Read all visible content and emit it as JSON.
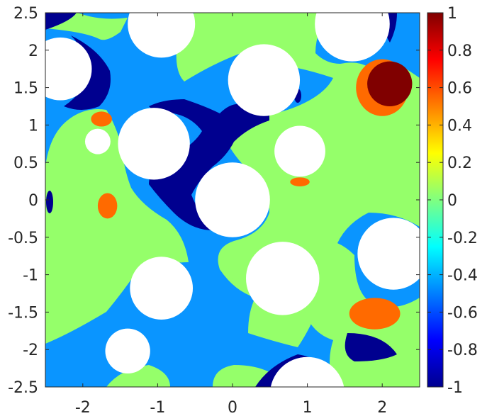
{
  "chart_data": {
    "type": "heatmap",
    "title": "",
    "xlabel": "",
    "ylabel": "",
    "xlim": [
      -2.5,
      2.5
    ],
    "ylim": [
      -2.5,
      2.5
    ],
    "x_ticks": [
      -2,
      -1,
      0,
      1,
      2
    ],
    "x_tick_labels": [
      "-2",
      "-1",
      "0",
      "1",
      "2"
    ],
    "y_ticks": [
      2.5,
      2,
      1.5,
      1,
      0.5,
      0,
      -0.5,
      -1,
      -1.5,
      -2,
      -2.5
    ],
    "y_tick_labels": [
      "2.5",
      "2",
      "1.5",
      "1",
      "0.5",
      "0",
      "-0.5",
      "-1",
      "-1.5",
      "-2",
      "-2.5"
    ],
    "colormap": "jet",
    "clim": [
      -1,
      1
    ],
    "colorbar_ticks": [
      1,
      0.8,
      0.6,
      0.4,
      0.2,
      0,
      -0.2,
      -0.4,
      -0.6,
      -0.8,
      -1
    ],
    "colorbar_tick_labels": [
      "1",
      "0.8",
      "0.6",
      "0.4",
      "0.2",
      "0",
      "-0.2",
      "-0.4",
      "-0.6",
      "-0.8",
      "-1"
    ],
    "colorbar_location": "right",
    "grid": false,
    "field_colors": {
      "level_minus_1": "#00008f",
      "level_minus_0_5": "#0a95ff",
      "level_0": "#95ff6a",
      "level_0_6": "#ff6a00",
      "level_1": "#800000",
      "hole": "#ffffff"
    },
    "holes": [
      {
        "cx": -2.3,
        "cy": 1.75,
        "r": 0.42
      },
      {
        "cx": -0.95,
        "cy": 2.35,
        "r": 0.45
      },
      {
        "cx": 1.6,
        "cy": 2.35,
        "r": 0.5
      },
      {
        "cx": 0.42,
        "cy": 1.6,
        "r": 0.48
      },
      {
        "cx": -1.8,
        "cy": 0.78,
        "r": 0.17
      },
      {
        "cx": -1.05,
        "cy": 0.75,
        "r": 0.48
      },
      {
        "cx": 0.9,
        "cy": 0.65,
        "r": 0.34
      },
      {
        "cx": 0.0,
        "cy": 0.0,
        "r": 0.5
      },
      {
        "cx": 2.15,
        "cy": -0.72,
        "r": 0.48
      },
      {
        "cx": -0.95,
        "cy": -1.18,
        "r": 0.42
      },
      {
        "cx": 0.67,
        "cy": -1.05,
        "r": 0.49
      },
      {
        "cx": -1.4,
        "cy": -2.02,
        "r": 0.3
      },
      {
        "cx": 1.0,
        "cy": -2.6,
        "r": 0.5
      }
    ],
    "hot_spots": [
      {
        "level": 1,
        "cx": 2.1,
        "cy": 1.55,
        "rx": 0.3,
        "ry": 0.3
      },
      {
        "level": 0.6,
        "cx": 2.0,
        "cy": 1.5,
        "rx": 0.35,
        "ry": 0.38
      },
      {
        "level": 0.6,
        "cx": -1.75,
        "cy": 1.08,
        "rx": 0.14,
        "ry": 0.1
      },
      {
        "level": 0.6,
        "cx": -1.67,
        "cy": -0.08,
        "rx": 0.13,
        "ry": 0.17
      },
      {
        "level": 0.6,
        "cx": 0.9,
        "cy": 0.24,
        "rx": 0.13,
        "ry": 0.06
      },
      {
        "level": 0.6,
        "cx": 1.9,
        "cy": -1.52,
        "rx": 0.34,
        "ry": 0.21
      }
    ]
  }
}
